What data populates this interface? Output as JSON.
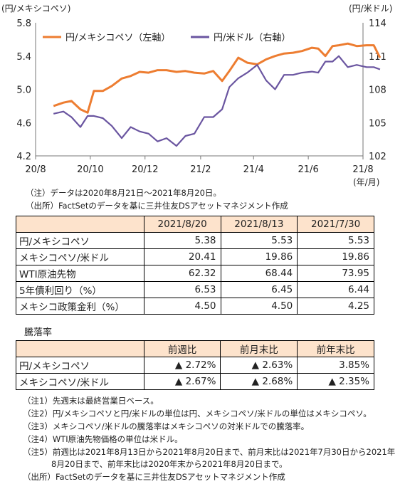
{
  "chart_data": {
    "type": "line",
    "left_axis_unit": "(円/メキシコペソ)",
    "right_axis_unit": "(円/米ドル)",
    "x_axis_unit": "(年/月)",
    "x_ticks": [
      "20/8",
      "20/10",
      "20/12",
      "21/2",
      "21/4",
      "21/6",
      "21/8"
    ],
    "y_left_ticks": [
      "4.2",
      "4.6",
      "5.0",
      "5.4",
      "5.8"
    ],
    "y_right_ticks": [
      "102",
      "105",
      "108",
      "111",
      "114"
    ],
    "ylim_left": [
      4.2,
      5.8
    ],
    "ylim_right": [
      102,
      114
    ],
    "series": [
      {
        "name": "円/メキシコペソ（左軸）",
        "axis": "left",
        "color": "#ED7D31",
        "x": [
          "2020-08-21",
          "2020-09-01",
          "2020-09-10",
          "2020-09-20",
          "2020-09-28",
          "2020-10-05",
          "2020-10-15",
          "2020-10-25",
          "2020-11-05",
          "2020-11-15",
          "2020-11-25",
          "2020-12-05",
          "2020-12-15",
          "2020-12-25",
          "2021-01-05",
          "2021-01-15",
          "2021-01-25",
          "2021-02-05",
          "2021-02-15",
          "2021-02-25",
          "2021-03-05",
          "2021-03-15",
          "2021-03-25",
          "2021-04-05",
          "2021-04-15",
          "2021-04-25",
          "2021-05-05",
          "2021-05-15",
          "2021-05-25",
          "2021-06-05",
          "2021-06-12",
          "2021-06-20",
          "2021-06-28",
          "2021-07-05",
          "2021-07-15",
          "2021-07-25",
          "2021-08-05",
          "2021-08-13",
          "2021-08-20"
        ],
        "values": [
          4.8,
          4.84,
          4.86,
          4.76,
          4.72,
          4.98,
          4.98,
          5.04,
          5.13,
          5.16,
          5.21,
          5.2,
          5.23,
          5.23,
          5.21,
          5.22,
          5.2,
          5.19,
          5.22,
          5.1,
          5.22,
          5.38,
          5.32,
          5.3,
          5.36,
          5.4,
          5.43,
          5.44,
          5.46,
          5.5,
          5.49,
          5.4,
          5.52,
          5.53,
          5.55,
          5.52,
          5.53,
          5.53,
          5.38
        ]
      },
      {
        "name": "円/米ドル（右軸）",
        "axis": "right",
        "color": "#6A55A0",
        "x": [
          "2020-08-21",
          "2020-09-01",
          "2020-09-10",
          "2020-09-20",
          "2020-09-28",
          "2020-10-05",
          "2020-10-15",
          "2020-10-25",
          "2020-11-05",
          "2020-11-15",
          "2020-11-25",
          "2020-12-05",
          "2020-12-15",
          "2020-12-25",
          "2021-01-05",
          "2021-01-15",
          "2021-01-25",
          "2021-02-05",
          "2021-02-15",
          "2021-02-25",
          "2021-03-05",
          "2021-03-15",
          "2021-03-25",
          "2021-04-05",
          "2021-04-15",
          "2021-04-25",
          "2021-05-05",
          "2021-05-15",
          "2021-05-25",
          "2021-06-05",
          "2021-06-12",
          "2021-06-20",
          "2021-06-28",
          "2021-07-05",
          "2021-07-15",
          "2021-07-25",
          "2021-08-05",
          "2021-08-13",
          "2021-08-20"
        ],
        "values": [
          105.8,
          106.0,
          105.5,
          104.6,
          105.6,
          105.6,
          105.4,
          104.7,
          103.6,
          104.6,
          104.2,
          104.0,
          103.3,
          103.6,
          102.9,
          103.8,
          104.0,
          105.5,
          105.5,
          106.2,
          108.2,
          109.0,
          109.5,
          110.2,
          108.8,
          108.0,
          109.3,
          109.3,
          109.5,
          109.6,
          109.5,
          110.5,
          110.5,
          111.0,
          110.0,
          110.2,
          110.0,
          110.0,
          109.8
        ]
      }
    ]
  },
  "notes_top": [
    "（注）データは2020年8月21日～2021年8月20日。",
    "（出所）FactSetのデータを基に三井住友DSアセットマネジメント作成"
  ],
  "table1": {
    "headers": [
      "",
      "2021/8/20",
      "2021/8/13",
      "2021/7/30"
    ],
    "rows": [
      [
        "円/メキシコペソ",
        "5.38",
        "5.53",
        "5.53"
      ],
      [
        "メキシコペソ/米ドル",
        "20.41",
        "19.86",
        "19.86"
      ],
      [
        "WTI原油先物",
        "62.32",
        "68.44",
        "73.95"
      ],
      [
        "5年債利回り（%）",
        "6.53",
        "6.45",
        "6.44"
      ],
      [
        "メキシコ政策金利（%）",
        "4.50",
        "4.50",
        "4.25"
      ]
    ]
  },
  "table2_title": "騰落率",
  "table2": {
    "headers": [
      "",
      "前週比",
      "前月末比",
      "前年末比"
    ],
    "rows": [
      [
        "円/メキシコペソ",
        "▲ 2.72%",
        "▲ 2.63%",
        "3.85%"
      ],
      [
        "メキシコペソ/米ドル",
        "▲ 2.67%",
        "▲ 2.68%",
        "▲ 2.35%"
      ]
    ]
  },
  "notes_bottom": [
    "（注1）先週末は最終営業日ベース。",
    "（注2）円/メキシコペソと円/米ドルの単位は円、メキシコペソ/米ドルの単位はメキシコペソ。",
    "（注3）メキシコペソ/米ドルの騰落率はメキシコペソの対米ドルでの騰落率。",
    "（注4）WTI原油先物価格の単位は米ドル。",
    "（注5）前週比は2021年8月13日から2021年8月20日まで、前月末比は2021年7月30日から2021年",
    "8月20日まで、前年末比は2020年末から2021年8月20日まで。",
    "（出所）FactSetのデータを基に三井住友DSアセットマネジメント作成"
  ]
}
